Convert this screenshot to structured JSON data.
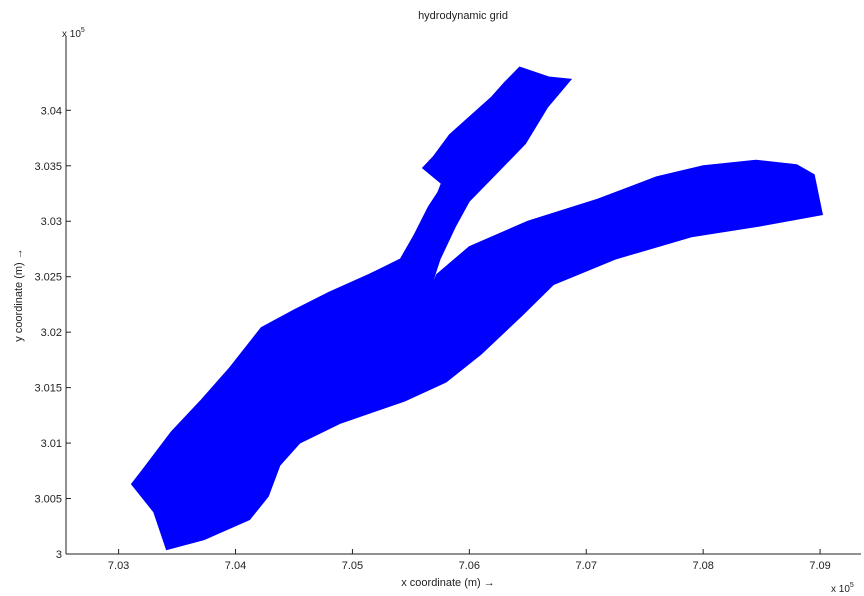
{
  "chart_data": {
    "type": "area",
    "title": "hydrodynamic grid",
    "xlabel": "x coordinate (m) →",
    "ylabel": "y coordinate (m) →",
    "x_exponent_label": "x 10",
    "x_exponent_power": "5",
    "y_exponent_label": "x 10",
    "y_exponent_power": "5",
    "xlim": [
      7.0255,
      7.0935
    ],
    "ylim": [
      3.0,
      3.0467
    ],
    "x_ticks": [
      7.03,
      7.04,
      7.05,
      7.06,
      7.07,
      7.08,
      7.09
    ],
    "x_tick_labels": [
      "7.03",
      "7.04",
      "7.05",
      "7.06",
      "7.07",
      "7.08",
      "7.09"
    ],
    "y_ticks": [
      3.0,
      3.005,
      3.01,
      3.015,
      3.02,
      3.025,
      3.03,
      3.035,
      3.04
    ],
    "y_tick_labels": [
      "3",
      "3.005",
      "3.01",
      "3.015",
      "3.02",
      "3.025",
      "3.03",
      "3.035",
      "3.04"
    ],
    "grid": false,
    "fill_color": "#0000ff",
    "polygon": [
      [
        7.0341,
        3.0004
      ],
      [
        7.0373,
        3.0013
      ],
      [
        7.0412,
        3.0031
      ],
      [
        7.0428,
        3.0052
      ],
      [
        7.0438,
        3.008
      ],
      [
        7.0455,
        3.01
      ],
      [
        7.049,
        3.0118
      ],
      [
        7.0545,
        3.0138
      ],
      [
        7.058,
        3.0155
      ],
      [
        7.061,
        3.018
      ],
      [
        7.0645,
        3.0215
      ],
      [
        7.0672,
        3.0243
      ],
      [
        7.0725,
        3.0266
      ],
      [
        7.079,
        3.0286
      ],
      [
        7.085,
        3.0296
      ],
      [
        7.0902,
        3.0306
      ],
      [
        7.0895,
        3.0342
      ],
      [
        7.088,
        3.0351
      ],
      [
        7.0845,
        3.0355
      ],
      [
        7.08,
        3.035
      ],
      [
        7.076,
        3.034
      ],
      [
        7.071,
        3.032
      ],
      [
        7.065,
        3.03
      ],
      [
        7.06,
        3.0277
      ],
      [
        7.0572,
        3.0252
      ],
      [
        7.0566,
        3.0237
      ],
      [
        7.0575,
        3.0266
      ],
      [
        7.0588,
        3.0295
      ],
      [
        7.06,
        3.0318
      ],
      [
        7.0625,
        3.0345
      ],
      [
        7.0648,
        3.037
      ],
      [
        7.0667,
        3.0403
      ],
      [
        7.0687,
        3.0428
      ],
      [
        7.0668,
        3.043
      ],
      [
        7.0643,
        3.0439
      ],
      [
        7.063,
        3.0425
      ],
      [
        7.0619,
        3.0412
      ],
      [
        7.0583,
        3.0378
      ],
      [
        7.0569,
        3.0358
      ],
      [
        7.056,
        3.0348
      ],
      [
        7.0576,
        3.0334
      ],
      [
        7.0573,
        3.0326
      ],
      [
        7.0565,
        3.0313
      ],
      [
        7.0553,
        3.0288
      ],
      [
        7.0541,
        3.0266
      ],
      [
        7.0514,
        3.0252
      ],
      [
        7.048,
        3.0236
      ],
      [
        7.045,
        3.022
      ],
      [
        7.0422,
        3.0204
      ],
      [
        7.0395,
        3.0168
      ],
      [
        7.037,
        3.0138
      ],
      [
        7.0345,
        3.011
      ],
      [
        7.0322,
        3.0078
      ],
      [
        7.0311,
        3.0063
      ],
      [
        7.033,
        3.0038
      ]
    ]
  }
}
